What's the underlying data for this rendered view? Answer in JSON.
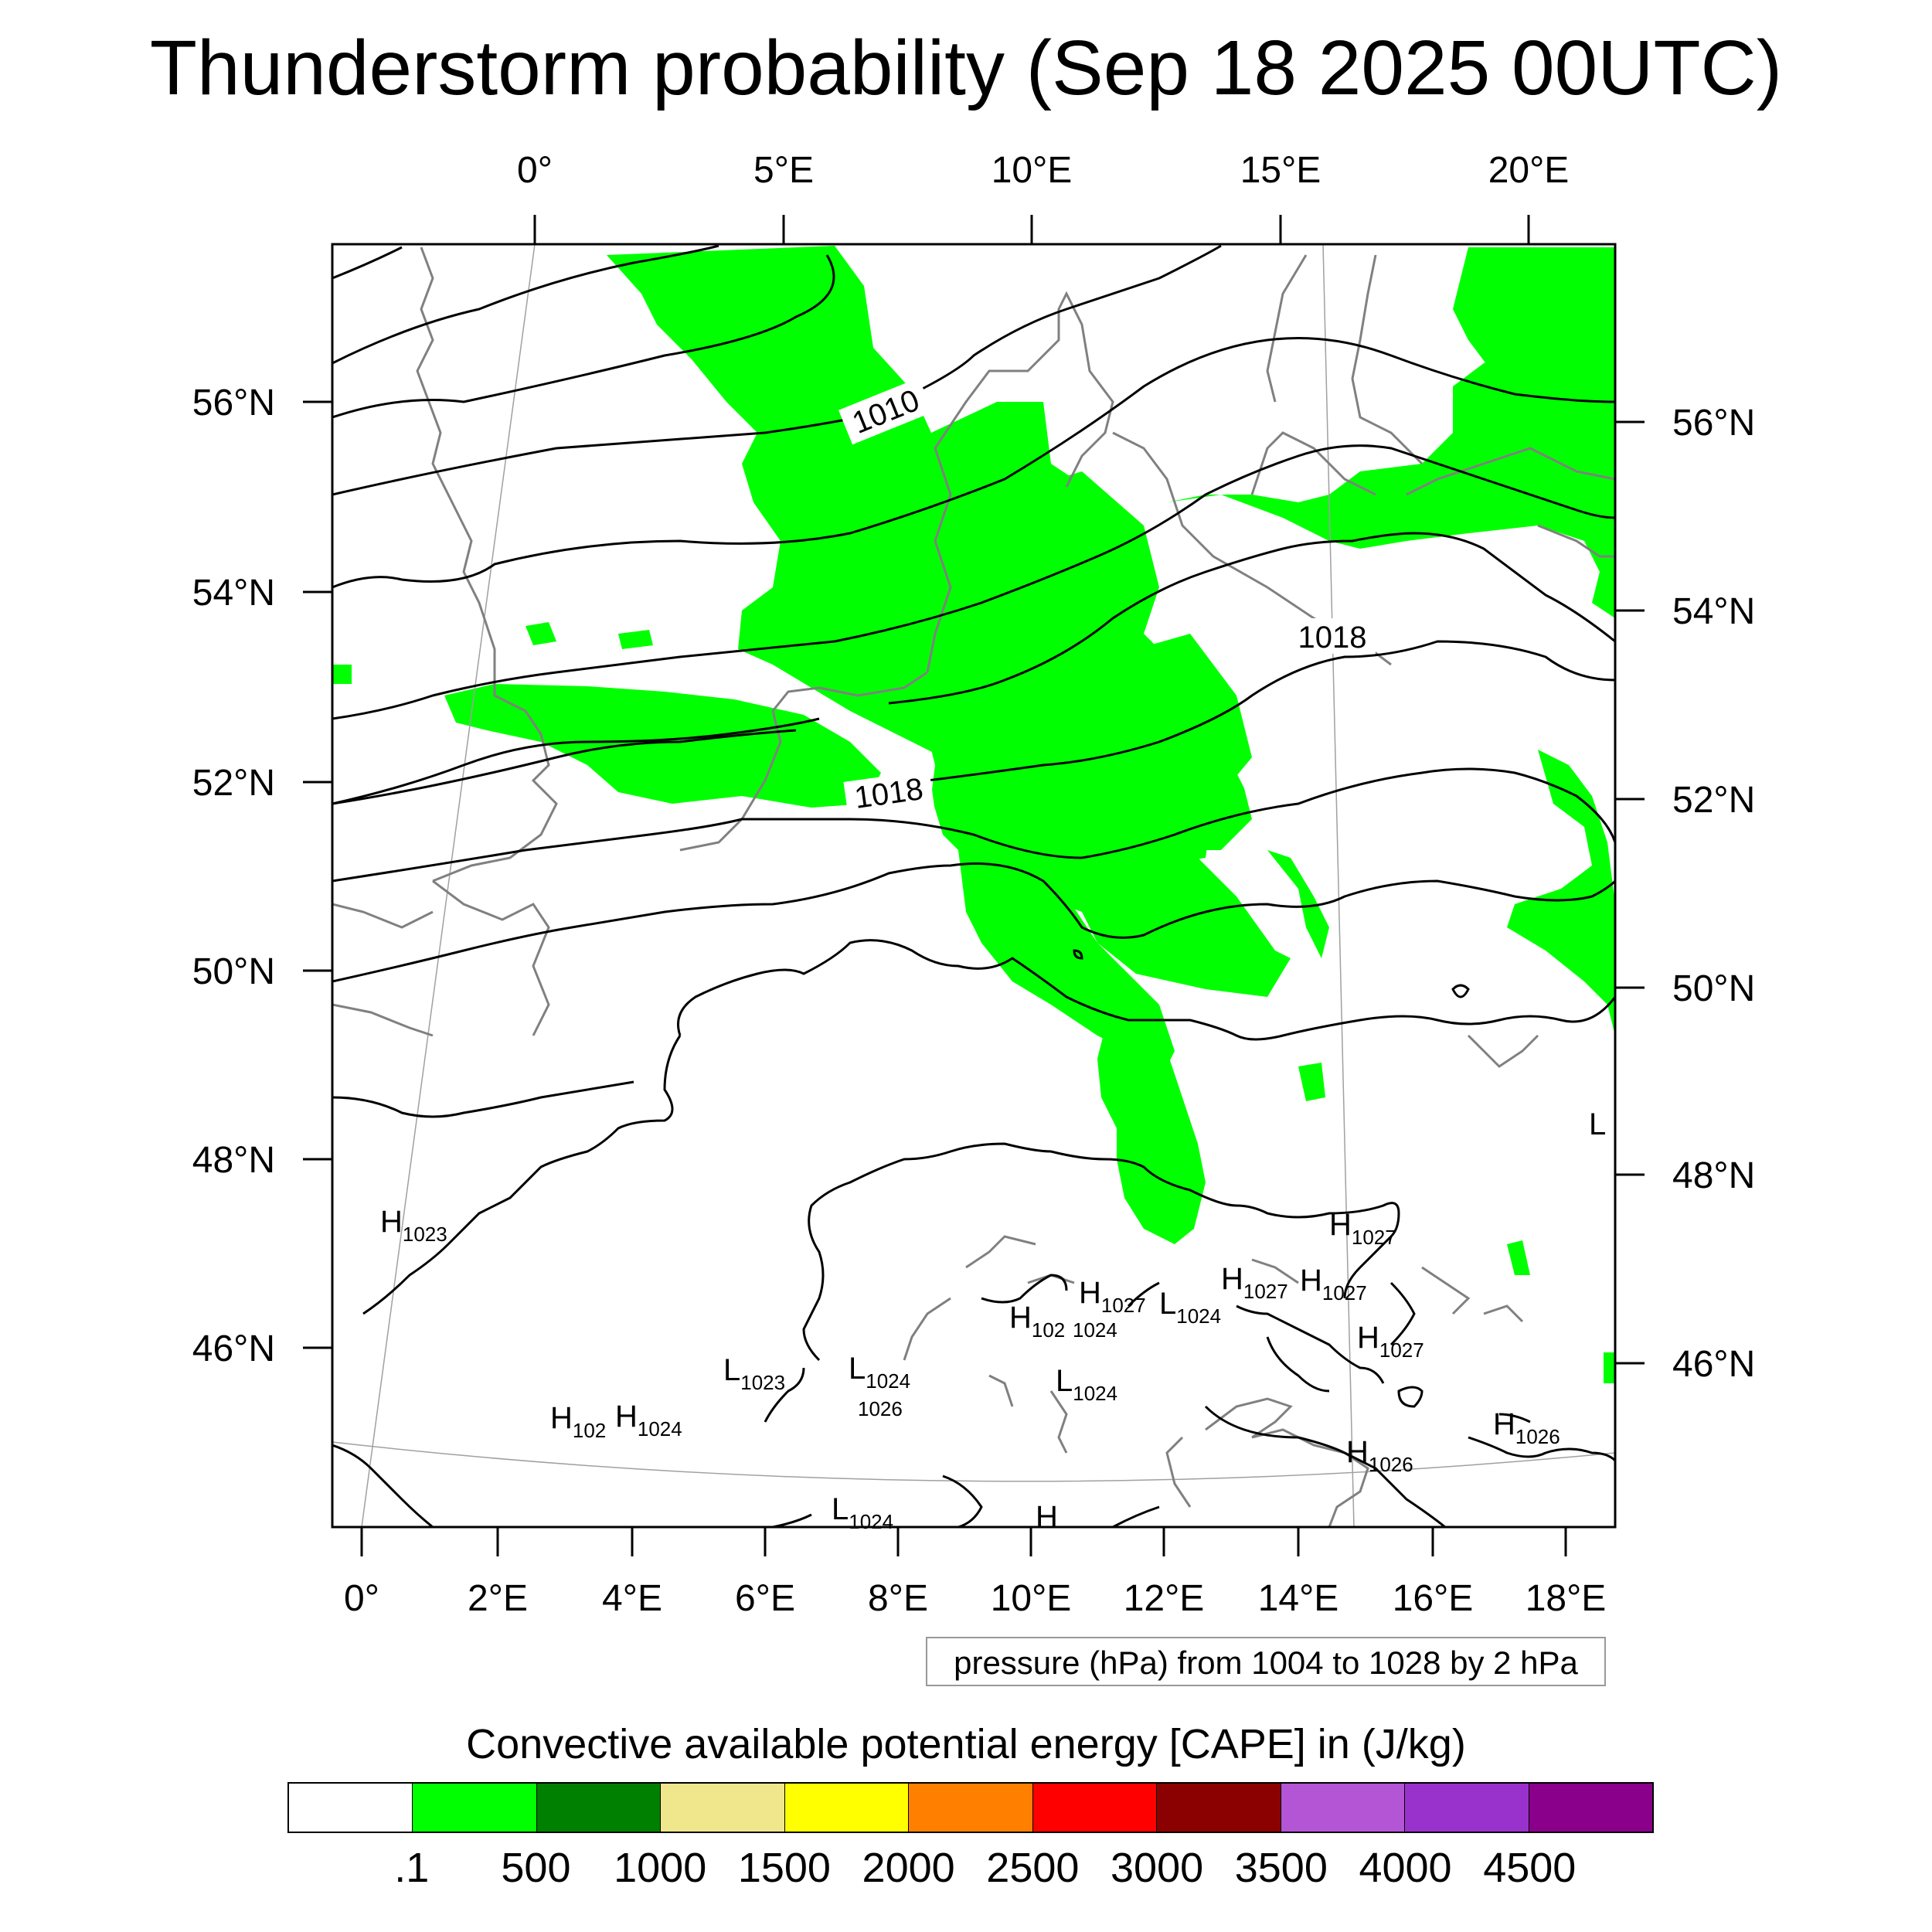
{
  "title": "Thunderstorm probability (Sep 18 2025 00UTC)",
  "map": {
    "top_lon_ticks": [
      "0°",
      "5°E",
      "10°E",
      "15°E",
      "20°E"
    ],
    "bottom_lon_ticks": [
      "0°",
      "2°E",
      "4°E",
      "6°E",
      "8°E",
      "10°E",
      "12°E",
      "14°E",
      "16°E",
      "18°E"
    ],
    "left_lat_ticks": [
      "56°N",
      "54°N",
      "52°N",
      "50°N",
      "48°N",
      "46°N"
    ],
    "right_lat_ticks": [
      "56°N",
      "54°N",
      "52°N",
      "50°N",
      "48°N",
      "46°N"
    ],
    "contour_labels": [
      "1010",
      "1018",
      "1018"
    ],
    "pressure_centers": [
      {
        "letter": "H",
        "value": "1023"
      },
      {
        "letter": "H",
        "value": "102"
      },
      {
        "letter": "H",
        "value": "1024"
      },
      {
        "letter": "L",
        "value": "1023"
      },
      {
        "letter": "L",
        "value": "1024"
      },
      {
        "letter": "",
        "value": "1026"
      },
      {
        "letter": "H",
        "value": "102"
      },
      {
        "letter": "",
        "value": "1024"
      },
      {
        "letter": "H",
        "value": "1027"
      },
      {
        "letter": "L",
        "value": "1024"
      },
      {
        "letter": "H",
        "value": "1027"
      },
      {
        "letter": "H",
        "value": "1027"
      },
      {
        "letter": "H",
        "value": "1027"
      },
      {
        "letter": "H",
        "value": "1027"
      },
      {
        "letter": "L",
        "value": "1024"
      },
      {
        "letter": "H",
        "value": "1026"
      },
      {
        "letter": "H",
        "value": "1026"
      },
      {
        "letter": "L",
        "value": "1024"
      },
      {
        "letter": "H",
        "value": ""
      },
      {
        "letter": "L",
        "value": ""
      }
    ],
    "cape_color": "#00ff00",
    "isobar_color": "#000000",
    "coast_color": "#808080"
  },
  "info_box": "pressure (hPa) from 1004 to 1028 by 2 hPa",
  "colorbar": {
    "title": "Convective available potential energy [CAPE] in (J/kg)",
    "colors": [
      "#ffffff",
      "#00ff00",
      "#008000",
      "#f0e68c",
      "#ffff00",
      "#ff8000",
      "#ff0000",
      "#8b0000",
      "#b455d6",
      "#9932cc",
      "#8b008b"
    ],
    "labels": [
      ".1",
      "500",
      "1000",
      "1500",
      "2000",
      "2500",
      "3000",
      "3500",
      "4000",
      "4500"
    ]
  }
}
